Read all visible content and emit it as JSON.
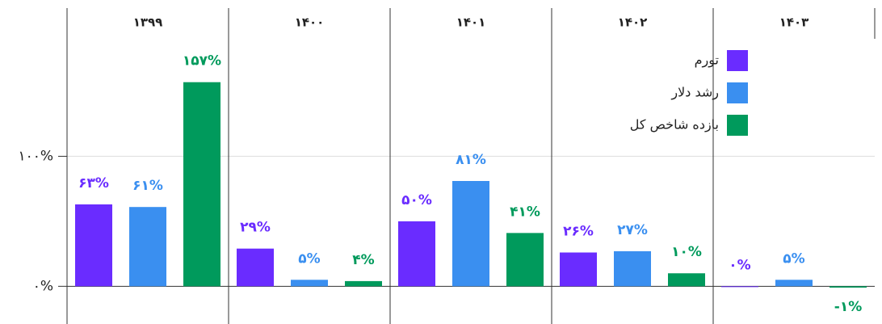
{
  "chart_data": {
    "type": "bar",
    "categories": [
      "۱۳۹۹",
      "۱۴۰۰",
      "۱۴۰۱",
      "۱۴۰۲",
      "۱۴۰۳"
    ],
    "series": [
      {
        "name": "تورم",
        "color": "#6a2cff",
        "values": [
          63,
          29,
          50,
          26,
          0
        ],
        "value_labels": [
          "۶۳%",
          "۲۹%",
          "۵۰%",
          "۲۶%",
          "۰%"
        ]
      },
      {
        "name": "رشد دلار",
        "color": "#3a8ff0",
        "values": [
          61,
          5,
          81,
          27,
          5
        ],
        "value_labels": [
          "۶۱%",
          "۵%",
          "۸۱%",
          "۲۷%",
          "۵%"
        ]
      },
      {
        "name": "بازده شاخص کل",
        "color": "#009a5c",
        "values": [
          157,
          4,
          41,
          10,
          -1
        ],
        "value_labels": [
          "۱۵۷%",
          "۴%",
          "۴۱%",
          "۱۰%",
          "-۱%"
        ]
      }
    ],
    "ylim": [
      -29,
      214
    ],
    "yticks": [
      {
        "value": 0,
        "label": "۰%"
      },
      {
        "value": 100,
        "label": "۱۰۰%"
      }
    ],
    "grid": true,
    "legend": "top right"
  }
}
